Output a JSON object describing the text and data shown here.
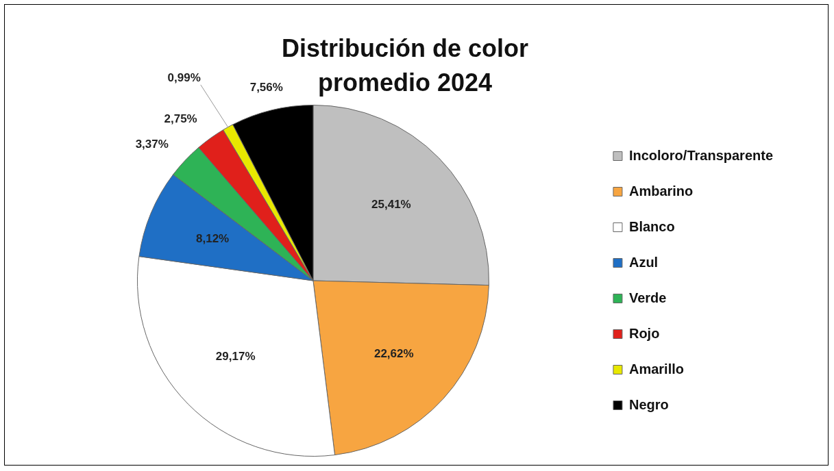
{
  "chart_data": {
    "type": "pie",
    "title": "Distribución de color promedio 2024",
    "categories": [
      "Incoloro/Transparente",
      "Ambarino",
      "Blanco",
      "Azul",
      "Verde",
      "Rojo",
      "Amarillo",
      "Negro"
    ],
    "values": [
      25.41,
      22.62,
      29.17,
      8.12,
      3.37,
      2.75,
      0.99,
      7.56
    ],
    "colors": [
      "#bfbfbf",
      "#f7a541",
      "#ffffff",
      "#1f6fc5",
      "#2eb356",
      "#e0201b",
      "#e8e800",
      "#000000"
    ],
    "value_labels": [
      "25,41%",
      "22,62%",
      "29,17%",
      "8,12%",
      "3,37%",
      "2,75%",
      "0,99%",
      "7,56%"
    ],
    "legend": "right"
  }
}
